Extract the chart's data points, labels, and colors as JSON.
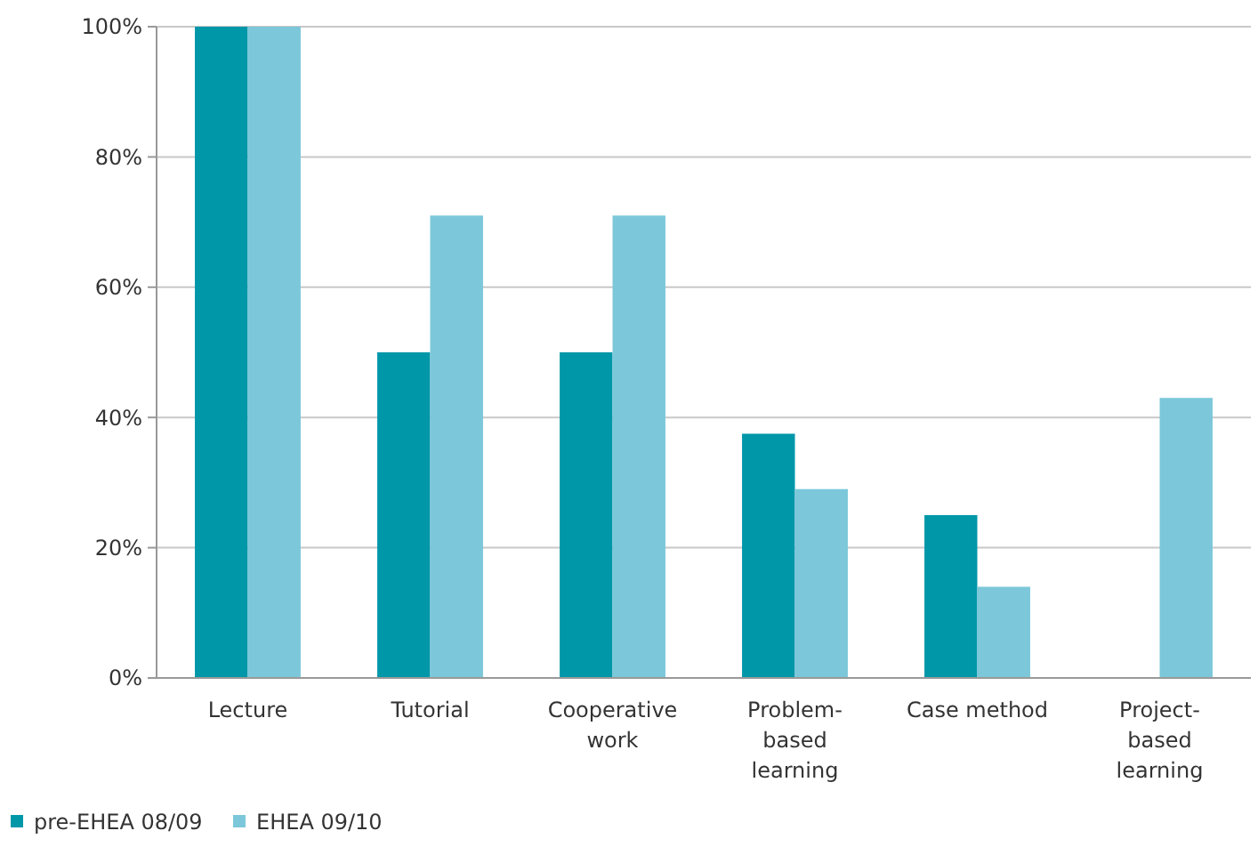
{
  "chart_data": {
    "type": "bar",
    "categories": [
      "Lecture",
      "Tutorial",
      "Cooperative work",
      "Problem-based learning",
      "Case method",
      "Project-based learning"
    ],
    "series": [
      {
        "name": "pre-EHEA 08/09",
        "color": "#0097a9",
        "values": [
          100,
          50,
          50,
          37.5,
          25,
          0
        ]
      },
      {
        "name": "EHEA 09/10",
        "color": "#7cc8da",
        "values": [
          100,
          71,
          71,
          29,
          14,
          43
        ]
      }
    ],
    "ylim": [
      0,
      100
    ],
    "yticks": [
      {
        "value": 0,
        "label": "0%"
      },
      {
        "value": 20,
        "label": "20%"
      },
      {
        "value": 40,
        "label": "40%"
      },
      {
        "value": 60,
        "label": "60%"
      },
      {
        "value": 80,
        "label": "80%"
      },
      {
        "value": 100,
        "label": "100%"
      }
    ],
    "grid": "y",
    "legend": "bottom left"
  }
}
